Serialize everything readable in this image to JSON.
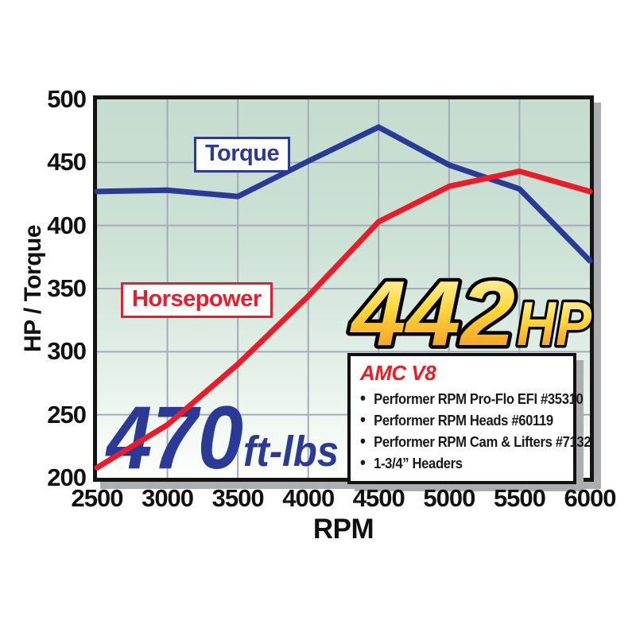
{
  "chart_data": {
    "type": "line",
    "title": "",
    "xlabel": "RPM",
    "ylabel": "HP / Torque",
    "x": [
      2500,
      3000,
      3500,
      4000,
      4500,
      5000,
      5500,
      6000
    ],
    "x_tick_labels": [
      "2500",
      "3000",
      "3500",
      "4000",
      "4500",
      "5000",
      "5500",
      "6000"
    ],
    "y_tick_labels": [
      "500",
      "450",
      "400",
      "350",
      "300",
      "250",
      "200"
    ],
    "xlim": [
      2500,
      6000
    ],
    "ylim": [
      200,
      500
    ],
    "grid": true,
    "legend_position": "inline-boxes",
    "series": [
      {
        "name": "Torque",
        "color": "#2b3a96",
        "values": [
          427,
          428,
          423,
          451,
          478,
          448,
          429,
          372
        ]
      },
      {
        "name": "Horsepower",
        "color": "#ea1c2c",
        "values": [
          208,
          242,
          290,
          344,
          403,
          431,
          443,
          427
        ]
      }
    ],
    "annotations": {
      "hp_value": "442",
      "hp_unit": "HP",
      "torque_value": "470",
      "torque_unit": "ft-lbs"
    }
  },
  "info_box": {
    "title": "AMC V8",
    "items": [
      "Performer RPM Pro-Flo EFI #35310",
      "Performer RPM Heads #60119",
      "Performer RPM Cam & Lifters #7132",
      "1-3/4” Headers"
    ]
  },
  "colors": {
    "torque_line": "#2b3a96",
    "horsepower_line": "#ea1c2c",
    "gridline": "#a4abb8",
    "plot_border": "#141414",
    "shadow": "#abadb0",
    "plot_bg_top": "#c5dccf",
    "plot_bg_bottom": "#fdfffd",
    "hp_text_gradient": [
      "#fdf8d2",
      "#ffd93a",
      "#f28b1d"
    ],
    "hp_text_outline": "#000000",
    "torque_text": "#2b3a96",
    "info_title_red": "#ed1c24"
  }
}
